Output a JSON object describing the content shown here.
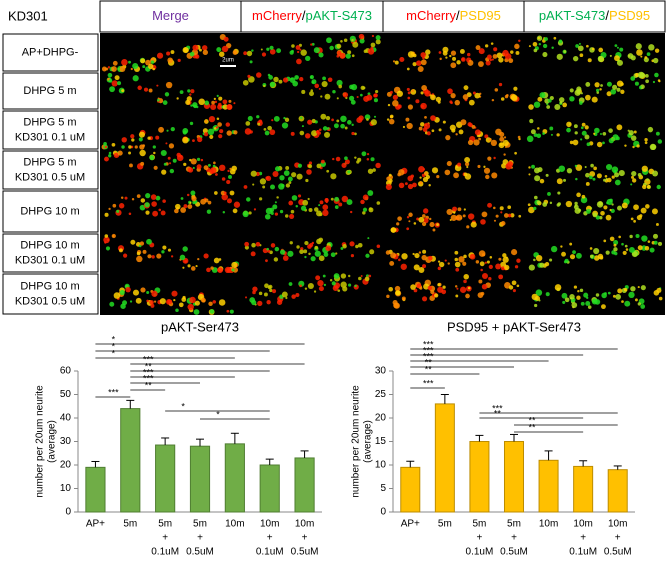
{
  "figure": {
    "corner": "KD301",
    "columns": [
      [
        {
          "text": "Merge",
          "color": "#7030a0"
        }
      ],
      [
        {
          "text": "mCherry",
          "color": "#ff0000"
        },
        {
          "text": "/",
          "color": "#000000"
        },
        {
          "text": "pAKT-S473",
          "color": "#00b050"
        }
      ],
      [
        {
          "text": "mCherry",
          "color": "#ff0000"
        },
        {
          "text": "/",
          "color": "#000000"
        },
        {
          "text": "PSD95",
          "color": "#ffc000"
        }
      ],
      [
        {
          "text": "pAKT-S473",
          "color": "#00b050"
        },
        {
          "text": "/",
          "color": "#000000"
        },
        {
          "text": "PSD95",
          "color": "#ffc000"
        }
      ]
    ],
    "rows": [
      [
        "AP+DHPG-"
      ],
      [
        "DHPG  5 m"
      ],
      [
        "DHPG 5 m",
        "KD301 0.1 uM"
      ],
      [
        "DHPG 5 m",
        "KD301 0.5 uM"
      ],
      [
        "DHPG 10 m"
      ],
      [
        "DHPG 10 m",
        "KD301 0.1 uM"
      ],
      [
        "DHPG 10 m",
        "KD301 0.5 uM"
      ]
    ],
    "scale_bar": "2um"
  },
  "chart_data": [
    {
      "type": "bar",
      "title": "pAKT-Ser473",
      "ylabel": [
        "number per 20um neurite",
        "(average)"
      ],
      "categories": [
        [
          "AP+"
        ],
        [
          "5m"
        ],
        [
          "5m",
          "+",
          "0.1uM"
        ],
        [
          "5m",
          "+",
          "0.5uM"
        ],
        [
          "10m"
        ],
        [
          "10m",
          "+",
          "0.1uM"
        ],
        [
          "10m",
          "+",
          "0.5uM"
        ]
      ],
      "values": [
        19,
        44,
        28.5,
        28,
        29,
        20,
        23
      ],
      "errors": [
        2.5,
        3.5,
        3,
        3,
        4.5,
        2.5,
        3
      ],
      "color": "#70ad47",
      "edge": "#507e32",
      "ylim": [
        0,
        60
      ],
      "yticks": [
        0,
        10,
        20,
        30,
        40,
        50,
        60
      ],
      "significance": [
        {
          "from": 0,
          "to": 6,
          "label": "*"
        },
        {
          "from": 0,
          "to": 5,
          "label": "*"
        },
        {
          "from": 0,
          "to": 4,
          "label": "*"
        },
        {
          "from": 1,
          "to": 6,
          "label": "***"
        },
        {
          "from": 1,
          "to": 5,
          "label": "**"
        },
        {
          "from": 1,
          "to": 4,
          "label": "***"
        },
        {
          "from": 1,
          "to": 3,
          "label": "***"
        },
        {
          "from": 1,
          "to": 2,
          "label": "**"
        },
        {
          "from": 0,
          "to": 1,
          "label": "***"
        },
        {
          "from": 2,
          "to": 5,
          "label": "*"
        },
        {
          "from": 3,
          "to": 5,
          "label": "*"
        }
      ]
    },
    {
      "type": "bar",
      "title": "PSD95 + pAKT-Ser473",
      "ylabel": [
        "number per 20um neurite",
        "(average)"
      ],
      "categories": [
        [
          "AP+"
        ],
        [
          "5m"
        ],
        [
          "5m",
          "+",
          "0.1uM"
        ],
        [
          "5m",
          "+",
          "0.5uM"
        ],
        [
          "10m"
        ],
        [
          "10m",
          "+",
          "0.1uM"
        ],
        [
          "10m",
          "+",
          "0.5uM"
        ]
      ],
      "values": [
        9.5,
        23,
        15,
        15,
        11,
        9.7,
        9
      ],
      "errors": [
        1.3,
        2,
        1.3,
        1.5,
        2,
        1.2,
        0.8
      ],
      "color": "#ffc000",
      "edge": "#bc8c00",
      "ylim": [
        0,
        30
      ],
      "yticks": [
        0,
        5,
        10,
        15,
        20,
        25,
        30
      ],
      "significance": [
        {
          "from": 0,
          "to": 6,
          "label": "***"
        },
        {
          "from": 0,
          "to": 5,
          "label": "***"
        },
        {
          "from": 0,
          "to": 4,
          "label": "***"
        },
        {
          "from": 0,
          "to": 3,
          "label": "**"
        },
        {
          "from": 0,
          "to": 2,
          "label": "**"
        },
        {
          "from": 0,
          "to": 1,
          "label": "***"
        },
        {
          "from": 2,
          "to": 6,
          "label": "***"
        },
        {
          "from": 2,
          "to": 5,
          "label": "**"
        },
        {
          "from": 3,
          "to": 6,
          "label": "**"
        },
        {
          "from": 3,
          "to": 5,
          "label": "**"
        }
      ]
    }
  ]
}
